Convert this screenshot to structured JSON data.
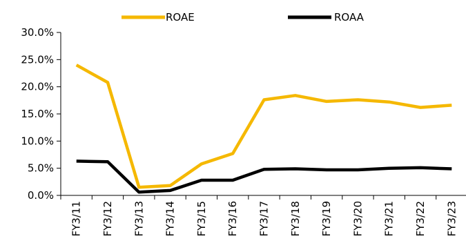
{
  "chart_data": {
    "type": "line",
    "title": "",
    "xlabel": "",
    "ylabel": "",
    "categories": [
      "FY3/11",
      "FY3/12",
      "FY3/13",
      "FY3/14",
      "FY3/15",
      "FY3/16",
      "FY3/17",
      "FY3/18",
      "FY3/19",
      "FY3/20",
      "FY3/21",
      "FY3/22",
      "FY3/23"
    ],
    "ylim": [
      0,
      30
    ],
    "yticks": [
      "0.0%",
      "5.0%",
      "10.0%",
      "15.0%",
      "20.0%",
      "25.0%",
      "30.0%"
    ],
    "grid": false,
    "legend_position": "top",
    "series": [
      {
        "name": "ROAE",
        "color": "#F5B800",
        "values": [
          24.0,
          20.8,
          1.5,
          1.8,
          5.8,
          7.7,
          17.6,
          18.4,
          17.3,
          17.6,
          17.2,
          16.2,
          16.6
        ]
      },
      {
        "name": "ROAA",
        "color": "#000000",
        "values": [
          6.3,
          6.2,
          0.6,
          0.9,
          2.8,
          2.8,
          4.8,
          4.9,
          4.7,
          4.7,
          5.0,
          5.1,
          4.9
        ]
      }
    ]
  }
}
